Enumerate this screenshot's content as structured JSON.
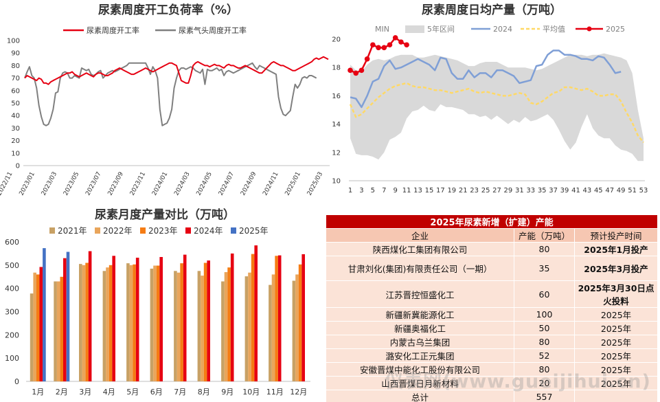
{
  "chart_data": [
    {
      "type": "line",
      "title": "尿素周度开工负荷率（%）",
      "ylim": [
        0,
        100
      ],
      "yticks": [
        0,
        10,
        20,
        30,
        40,
        50,
        60,
        70,
        80,
        90,
        100
      ],
      "x_tick_labels": [
        "2022/11",
        "2023/01",
        "2023/03",
        "2023/05",
        "2023/07",
        "2023/09",
        "2023/11",
        "2024/01",
        "2024/03",
        "2024/05",
        "2024/07",
        "2024/09",
        "2024/11",
        "2025/01",
        "2025/03"
      ],
      "series": [
        {
          "name": "尿素周度开工率",
          "color": "#e60012",
          "values": [
            70,
            72,
            71,
            70,
            69,
            68,
            70,
            69,
            66,
            66,
            65,
            67,
            68,
            69,
            70,
            71,
            72,
            73,
            74,
            74,
            75,
            73,
            72,
            71,
            72,
            73,
            74,
            73,
            72,
            71,
            73,
            74,
            74,
            73,
            72,
            72,
            73,
            74,
            76,
            77,
            78,
            77,
            76,
            75,
            74,
            73,
            73,
            74,
            75,
            76,
            77,
            78,
            77,
            76,
            75,
            76,
            77,
            78,
            79,
            80,
            81,
            82,
            82,
            81,
            80,
            74,
            68,
            67,
            66,
            66,
            72,
            80,
            82,
            83,
            82,
            81,
            80,
            80,
            79,
            80,
            81,
            80,
            80,
            79,
            78,
            80,
            81,
            80,
            80,
            79,
            78,
            78,
            79,
            80,
            79,
            78,
            77,
            76,
            75,
            74,
            74,
            76,
            78,
            80,
            82,
            83,
            82,
            81,
            80,
            80,
            79,
            78,
            77,
            76,
            76,
            77,
            78,
            79,
            80,
            81,
            82,
            83,
            85,
            86,
            85,
            86,
            87,
            86,
            85
          ]
        },
        {
          "name": "尿素气头周度开工率",
          "color": "#7f7f7f",
          "values": [
            70,
            75,
            79,
            72,
            70,
            62,
            48,
            39,
            33,
            32,
            33,
            38,
            45,
            58,
            59,
            70,
            74,
            75,
            74,
            70,
            70,
            72,
            71,
            70,
            78,
            77,
            76,
            77,
            73,
            72,
            73,
            75,
            76,
            70,
            72,
            74,
            75,
            76,
            75,
            76,
            77,
            78,
            79,
            80,
            82,
            82,
            82,
            82,
            82,
            82,
            82,
            82,
            78,
            73,
            79,
            76,
            70,
            45,
            32,
            33,
            34,
            38,
            45,
            62,
            70,
            76,
            78,
            78,
            77,
            78,
            79,
            78,
            76,
            75,
            74,
            77,
            65,
            77,
            76,
            76,
            77,
            78,
            76,
            77,
            72,
            75,
            76,
            75,
            74,
            75,
            76,
            77,
            78,
            79,
            80,
            81,
            82,
            79,
            77,
            80,
            79,
            78,
            77,
            76,
            75,
            74,
            73,
            55,
            46,
            41,
            40,
            42,
            44,
            55,
            65,
            62,
            65,
            70,
            71,
            70,
            72,
            72,
            71,
            70
          ]
        }
      ]
    },
    {
      "type": "area",
      "title": "尿素周度日均产量（万吨）",
      "ylim": [
        10,
        20
      ],
      "yticks": [
        10,
        12,
        14,
        16,
        18,
        20
      ],
      "x": [
        1,
        2,
        3,
        4,
        5,
        6,
        7,
        8,
        9,
        10,
        11,
        12,
        13,
        14,
        15,
        16,
        17,
        18,
        19,
        20,
        21,
        22,
        23,
        24,
        25,
        26,
        27,
        28,
        29,
        30,
        31,
        32,
        33,
        34,
        35,
        36,
        37,
        38,
        39,
        40,
        41,
        42,
        43,
        44,
        45,
        46,
        47,
        48,
        49,
        50,
        51,
        52,
        53
      ],
      "x_tick_labels": [
        "1",
        "3",
        "5",
        "7",
        "9",
        "11",
        "13",
        "15",
        "17",
        "19",
        "21",
        "23",
        "25",
        "27",
        "29",
        "31",
        "33",
        "35",
        "37",
        "39",
        "41",
        "43",
        "45",
        "47",
        "49",
        "51",
        "53"
      ],
      "legend": [
        "MIN",
        "5年区间",
        "2024",
        "平均值",
        "2025"
      ],
      "range_band": {
        "name": "5年区间",
        "color": "#d9d9d9",
        "min": [
          13.0,
          11.9,
          11.8,
          11.8,
          11.7,
          11.5,
          12.0,
          12.9,
          13.1,
          13.4,
          14.4,
          14.9,
          15.0,
          15.3,
          15.0,
          14.9,
          15.4,
          15.2,
          15.2,
          15.1,
          15.0,
          14.7,
          14.7,
          14.5,
          14.6,
          14.3,
          14.6,
          14.3,
          14.0,
          14.3,
          14.1,
          14.5,
          14.2,
          14.3,
          14.5,
          14.7,
          14.3,
          13.6,
          12.8,
          12.2,
          12.7,
          13.8,
          14.7,
          13.7,
          13.2,
          13.0,
          13.0,
          12.5,
          12.2,
          12.1,
          11.9,
          11.4,
          11.4
        ],
        "max": [
          18.2,
          17.8,
          17.7,
          18.2,
          18.5,
          18.6,
          18.5,
          18.6,
          18.8,
          18.9,
          18.9,
          18.9,
          18.7,
          18.7,
          18.8,
          18.9,
          18.8,
          18.7,
          18.6,
          18.5,
          18.3,
          18.1,
          18.1,
          18.3,
          18.4,
          18.4,
          18.4,
          18.2,
          18.0,
          18.0,
          18.0,
          18.0,
          17.9,
          17.8,
          17.9,
          18.1,
          18.3,
          18.5,
          18.7,
          18.9,
          18.9,
          18.9,
          18.8,
          18.9,
          18.9,
          19.0,
          18.9,
          18.8,
          18.7,
          18.5,
          17.6,
          15.0,
          13.0
        ]
      },
      "series": [
        {
          "name": "2024",
          "color": "#7f9fd6",
          "values": [
            15.9,
            15.8,
            15.2,
            16.0,
            17.0,
            17.2,
            18.1,
            18.5,
            17.9,
            18.0,
            18.2,
            18.4,
            18.6,
            18.4,
            18.2,
            17.8,
            18.7,
            18.6,
            17.6,
            17.2,
            17.2,
            17.8,
            17.3,
            17.6,
            17.6,
            17.3,
            17.8,
            17.8,
            17.6,
            17.4,
            16.9,
            17.0,
            17.1,
            18.1,
            18.2,
            18.9,
            19.2,
            19.2,
            18.9,
            18.9,
            18.8,
            18.6,
            18.6,
            18.5,
            18.8,
            18.7,
            18.2,
            17.6,
            17.7,
            null,
            null,
            null,
            null
          ]
        },
        {
          "name": "平均值",
          "color": "#ffd966",
          "values": [
            15.4,
            14.5,
            14.7,
            15.1,
            15.5,
            15.9,
            16.2,
            16.5,
            16.7,
            16.8,
            16.9,
            16.7,
            16.6,
            16.6,
            16.5,
            16.4,
            16.4,
            16.3,
            16.2,
            16.3,
            16.4,
            16.5,
            16.3,
            16.2,
            16.3,
            16.2,
            16.1,
            16.0,
            16.0,
            16.1,
            16.2,
            16.1,
            15.5,
            15.4,
            15.6,
            15.9,
            16.2,
            16.3,
            16.6,
            16.6,
            16.5,
            16.4,
            16.5,
            16.3,
            16.0,
            16.0,
            16.1,
            16.1,
            15.6,
            14.8,
            14.1,
            13.2,
            12.7
          ]
        },
        {
          "name": "2025",
          "color": "#e60012",
          "values": [
            17.8,
            17.6,
            17.8,
            18.6,
            19.6,
            19.4,
            19.4,
            19.6,
            20.1,
            19.8,
            19.6,
            null,
            null,
            null,
            null,
            null,
            null,
            null,
            null,
            null,
            null,
            null,
            null,
            null,
            null,
            null,
            null,
            null,
            null,
            null,
            null,
            null,
            null,
            null,
            null,
            null,
            null,
            null,
            null,
            null,
            null,
            null,
            null,
            null,
            null,
            null,
            null,
            null,
            null,
            null,
            null,
            null,
            null
          ]
        }
      ]
    },
    {
      "type": "bar",
      "title": "尿素月度产量对比（万吨）",
      "ylim": [
        0,
        600
      ],
      "yticks": [
        0,
        100,
        200,
        300,
        400,
        500,
        600
      ],
      "categories": [
        "1月",
        "2月",
        "3月",
        "4月",
        "5月",
        "6月",
        "7月",
        "8月",
        "9月",
        "10月",
        "11月",
        "12月"
      ],
      "series": [
        {
          "name": "2021年",
          "color": "#c8a165",
          "values": [
            378,
            430,
            505,
            475,
            508,
            485,
            475,
            475,
            430,
            452,
            415,
            433
          ]
        },
        {
          "name": "2022年",
          "color": "#e9a55b",
          "values": [
            468,
            430,
            500,
            490,
            500,
            498,
            468,
            455,
            470,
            468,
            460,
            460
          ]
        },
        {
          "name": "2023年",
          "color": "#f57c14",
          "values": [
            460,
            450,
            510,
            500,
            503,
            498,
            508,
            510,
            490,
            548,
            540,
            503
          ]
        },
        {
          "name": "2024年",
          "color": "#e60012",
          "values": [
            492,
            530,
            560,
            540,
            532,
            535,
            545,
            520,
            550,
            585,
            542,
            547
          ]
        },
        {
          "name": "2025年",
          "color": "#4472c4",
          "values": [
            573,
            557,
            null,
            null,
            null,
            null,
            null,
            null,
            null,
            null,
            null,
            null
          ]
        }
      ]
    }
  ],
  "capacity_table": {
    "title": "2025年尿素新增（扩建）产能",
    "headers": [
      "企业",
      "产能（万吨）",
      "预计投产时间"
    ],
    "rows": [
      [
        "陕西煤化工集团有限公司",
        "80",
        "2025年1月投产"
      ],
      [
        "甘肃刘化(集团)有限责任公司（一期）",
        "35",
        "2025年3月投产"
      ],
      [
        "江苏晋控恒盛化工",
        "60",
        "2025年3月30日点火投料"
      ],
      [
        "新疆新冀能源化工",
        "100",
        "2025年"
      ],
      [
        "新疆奥福化工",
        "50",
        "2025年"
      ],
      [
        "内蒙古乌兰集团",
        "80",
        "2025年"
      ],
      [
        "潞安化工正元集团",
        "52",
        "2025年"
      ],
      [
        "安徽晋煤中能化工股份有限公司",
        "80",
        "2025年"
      ],
      [
        "山西晋煤日月新材料",
        "20",
        "2025年"
      ],
      [
        "总计",
        "557",
        ""
      ]
    ]
  },
  "watermark": "仪表网(www.gueijihui.cn)"
}
